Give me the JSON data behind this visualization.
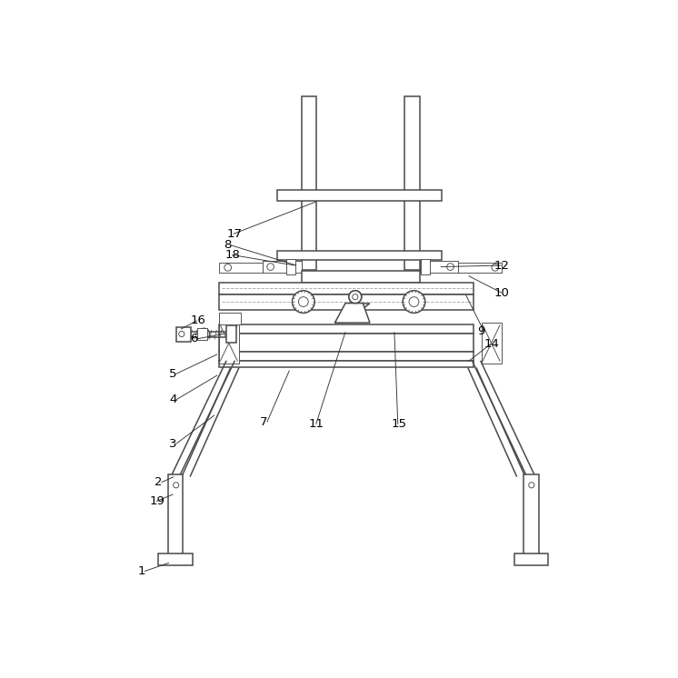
{
  "bg": "#ffffff",
  "lc": "#4a4a4a",
  "lw": 1.1,
  "tlw": 0.65,
  "fig": 7.46,
  "dpi": 100,
  "labels_leaders": [
    [
      "1",
      73,
      700,
      118,
      688
    ],
    [
      "2",
      97,
      573,
      125,
      565
    ],
    [
      "3",
      118,
      518,
      183,
      477
    ],
    [
      "4",
      118,
      455,
      187,
      420
    ],
    [
      "5",
      118,
      418,
      187,
      390
    ],
    [
      "6",
      148,
      368,
      200,
      360
    ],
    [
      "7",
      248,
      487,
      290,
      413
    ],
    [
      "8",
      196,
      234,
      300,
      263
    ],
    [
      "9",
      558,
      357,
      542,
      305
    ],
    [
      "10",
      583,
      302,
      546,
      278
    ],
    [
      "11",
      318,
      490,
      370,
      358
    ],
    [
      "12",
      583,
      263,
      506,
      265
    ],
    [
      "14",
      568,
      375,
      546,
      400
    ],
    [
      "15",
      435,
      490,
      440,
      358
    ],
    [
      "16",
      148,
      342,
      135,
      354
    ],
    [
      "17",
      200,
      218,
      328,
      172
    ],
    [
      "18",
      198,
      248,
      298,
      263
    ],
    [
      "19",
      90,
      600,
      124,
      590
    ]
  ]
}
